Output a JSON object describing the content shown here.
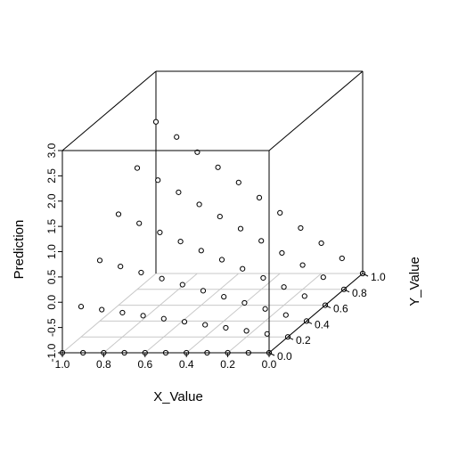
{
  "chart_data": {
    "type": "scatter3d",
    "xlabel": "X_Value",
    "ylabel": "Y_Value",
    "zlabel": "Prediction",
    "xlim": [
      0.0,
      1.0
    ],
    "ylim": [
      0.0,
      1.0
    ],
    "zlim": [
      -1.0,
      3.0
    ],
    "x_ticks": [
      "1.0",
      "0.8",
      "0.6",
      "0.4",
      "0.2",
      "0.0"
    ],
    "y_ticks": [
      "0.0",
      "0.2",
      "0.4",
      "0.6",
      "0.8",
      "1.0"
    ],
    "z_ticks": [
      "-1.0",
      "-0.5",
      "0.0",
      "0.5",
      "1.0",
      "1.5",
      "2.0",
      "2.5",
      "3.0"
    ],
    "grid": true,
    "box": true,
    "marker": "open-circle",
    "model": "prediction ≈ 3·x·y − 1 (points on a grid x ∈ {0,0.1,…,1}, y ∈ {0,0.2,…,1})",
    "points_x_levels": [
      0.0,
      0.1,
      0.2,
      0.3,
      0.4,
      0.5,
      0.6,
      0.7,
      0.8,
      0.9,
      1.0
    ],
    "points_y_levels": [
      0.0,
      0.2,
      0.4,
      0.6,
      0.8,
      1.0
    ],
    "points_z_formula": {
      "a": 3.0,
      "b": -1.0
    }
  }
}
